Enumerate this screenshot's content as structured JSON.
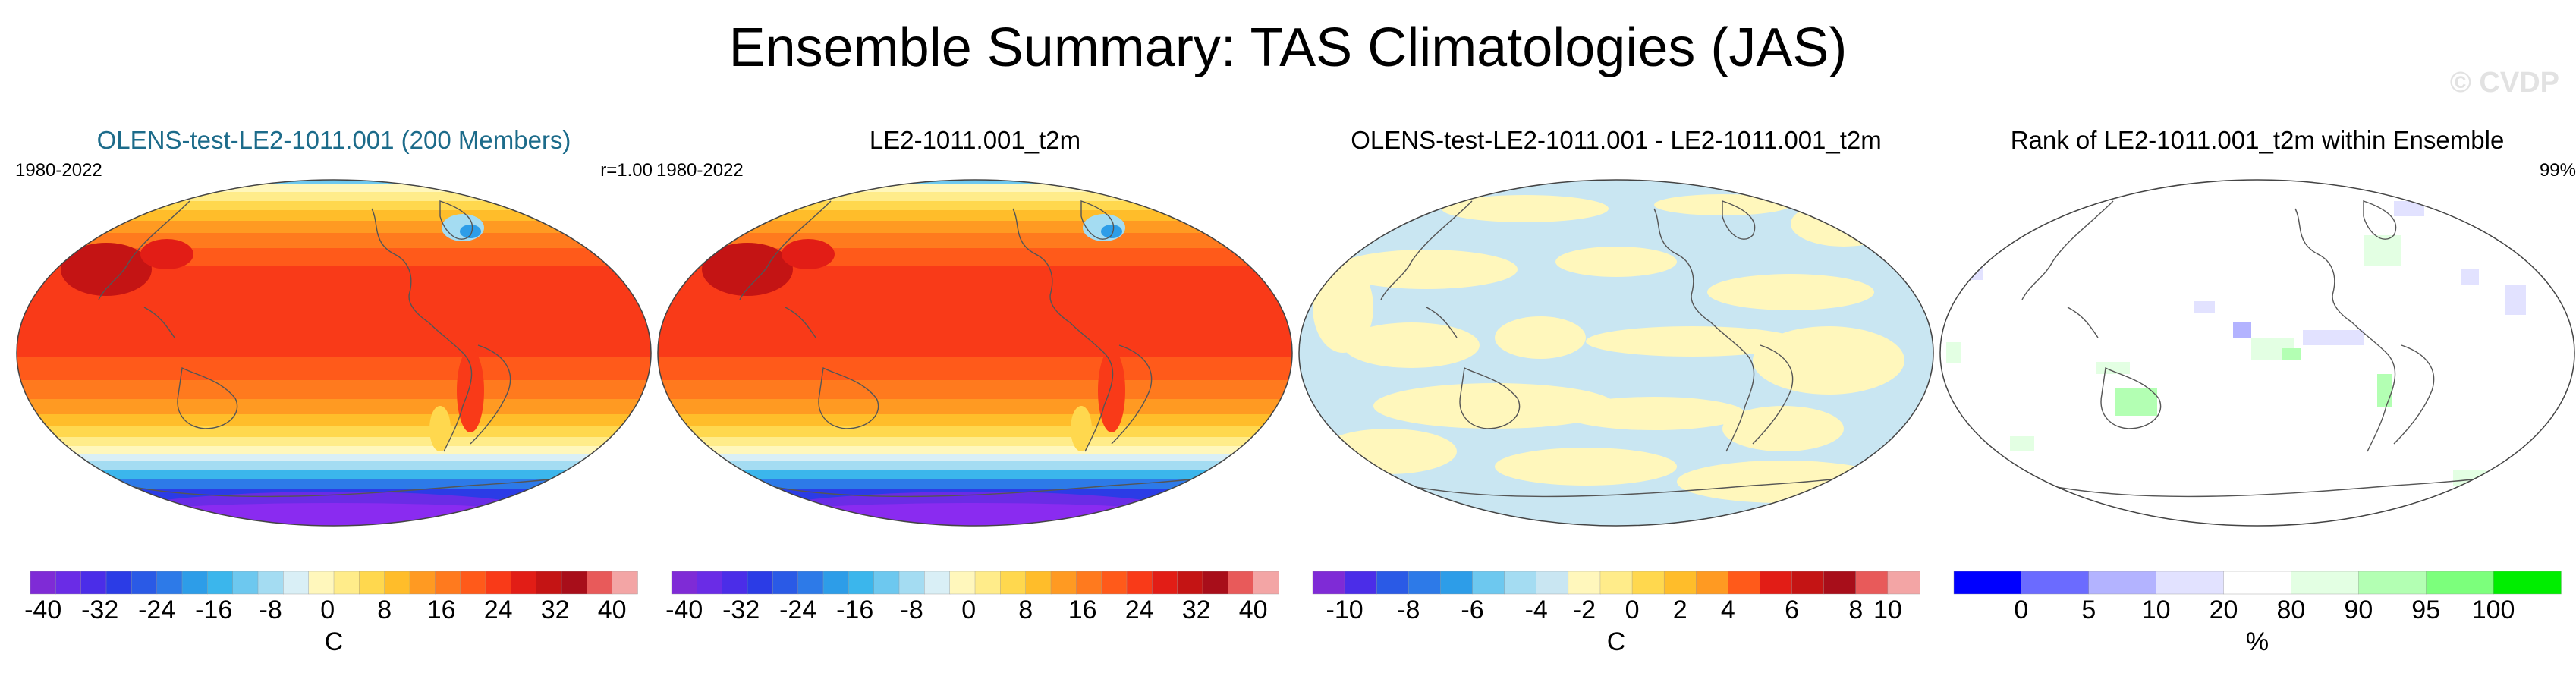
{
  "title": "Ensemble Summary: TAS Climatologies (JAS)",
  "watermark": "© CVDP",
  "chart_data": [
    {
      "type": "heatmap",
      "title": "OLENS-test-LE2-1011.001 (200 Members)",
      "period": "1980-2022",
      "stat": "r=1.00",
      "field": "temperature_climatology",
      "colorbar": {
        "units": "C",
        "levels": [
          -40,
          -36,
          -32,
          -28,
          -24,
          -20,
          -16,
          -12,
          -8,
          -4,
          0,
          4,
          8,
          12,
          16,
          20,
          24,
          28,
          32,
          36,
          40
        ],
        "tick_labels": [
          "-40",
          "-32",
          "-24",
          "-16",
          "-8",
          "0",
          "8",
          "16",
          "24",
          "32",
          "40"
        ],
        "colors": [
          "#7f2bd6",
          "#6a2ce6",
          "#4b2de8",
          "#2b3ce6",
          "#2a5ae6",
          "#2d7ae8",
          "#2d9de8",
          "#3bb6ec",
          "#6dc8ef",
          "#a4dcf2",
          "#d9eff6",
          "#fff7bc",
          "#ffec8a",
          "#ffd84e",
          "#ffbd2a",
          "#ff9a22",
          "#ff7a1e",
          "#ff5a1a",
          "#f93a18",
          "#e21d16",
          "#c41414",
          "#a80e1a",
          "#e85a5a",
          "#f3a5a5"
        ]
      }
    },
    {
      "type": "heatmap",
      "title": "LE2-1011.001_t2m",
      "period": "1980-2022",
      "field": "temperature_climatology",
      "colorbar": {
        "units": "",
        "tick_labels": [
          "-40",
          "-32",
          "-24",
          "-16",
          "-8",
          "0",
          "8",
          "16",
          "24",
          "32",
          "40"
        ]
      }
    },
    {
      "type": "heatmap",
      "title": "OLENS-test-LE2-1011.001 - LE2-1011.001_t2m",
      "field": "difference",
      "colorbar": {
        "units": "C",
        "tick_labels": [
          "-10",
          "-8",
          "-6",
          "-4",
          "-2",
          "0",
          "2",
          "4",
          "6",
          "8",
          "10"
        ],
        "colors": [
          "#7f2bd6",
          "#4b2de8",
          "#2a5ae6",
          "#2d7ae8",
          "#2d9de8",
          "#6dc8ef",
          "#a4dcf2",
          "#c9e6f2",
          "#fff7bc",
          "#ffec8a",
          "#ffd84e",
          "#ffbd2a",
          "#ff9a22",
          "#ff5a1a",
          "#e21d16",
          "#c41414",
          "#a80e1a",
          "#e85a5a",
          "#f3a5a5"
        ]
      }
    },
    {
      "type": "heatmap",
      "title": "Rank of LE2-1011.001_t2m within Ensemble",
      "stat": "99%",
      "field": "rank",
      "colorbar": {
        "units": "%",
        "tick_labels": [
          "0",
          "5",
          "10",
          "20",
          "80",
          "90",
          "95",
          "100"
        ],
        "colors": [
          "#0000ff",
          "#6b6bff",
          "#b3b3ff",
          "#e2e2ff",
          "#ffffff",
          "#e3ffe3",
          "#b3ffb3",
          "#7cff7c",
          "#00ee00"
        ]
      }
    }
  ]
}
